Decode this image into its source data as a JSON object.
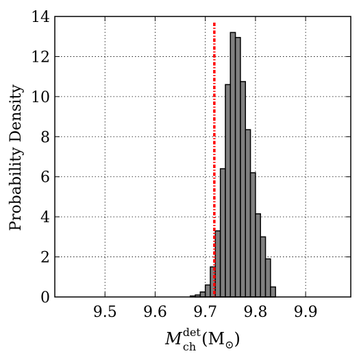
{
  "chart_data": {
    "type": "bar",
    "subtype": "histogram",
    "xlabel_base": "M",
    "xlabel_sub": "ch",
    "xlabel_sup": "det",
    "xlabel_unit": "(M",
    "xlabel_unit_sub": "⊙",
    "xlabel_close": ")",
    "ylabel": "Probability Density",
    "xlim": [
      9.4,
      9.99
    ],
    "ylim": [
      0,
      14
    ],
    "x_ticks": [
      9.5,
      9.6,
      9.7,
      9.8,
      9.9
    ],
    "x_tick_labels": [
      "9.5",
      "9.6",
      "9.7",
      "9.8",
      "9.9"
    ],
    "y_ticks": [
      0,
      2,
      4,
      6,
      8,
      10,
      12,
      14
    ],
    "y_tick_labels": [
      "0",
      "2",
      "4",
      "6",
      "8",
      "10",
      "12",
      "14"
    ],
    "grid": true,
    "bin_width": 0.01,
    "bins": [
      {
        "x0": 9.67,
        "x1": 9.68,
        "value": 0.05
      },
      {
        "x0": 9.68,
        "x1": 9.69,
        "value": 0.1
      },
      {
        "x0": 9.69,
        "x1": 9.7,
        "value": 0.25
      },
      {
        "x0": 9.7,
        "x1": 9.71,
        "value": 0.6
      },
      {
        "x0": 9.71,
        "x1": 9.72,
        "value": 1.5
      },
      {
        "x0": 9.72,
        "x1": 9.73,
        "value": 3.3
      },
      {
        "x0": 9.73,
        "x1": 9.74,
        "value": 6.4
      },
      {
        "x0": 9.74,
        "x1": 9.75,
        "value": 10.6
      },
      {
        "x0": 9.75,
        "x1": 9.76,
        "value": 13.2
      },
      {
        "x0": 9.76,
        "x1": 9.77,
        "value": 12.95
      },
      {
        "x0": 9.77,
        "x1": 9.78,
        "value": 10.75
      },
      {
        "x0": 9.78,
        "x1": 9.79,
        "value": 8.35
      },
      {
        "x0": 9.79,
        "x1": 9.8,
        "value": 6.2
      },
      {
        "x0": 9.8,
        "x1": 9.81,
        "value": 4.15
      },
      {
        "x0": 9.81,
        "x1": 9.82,
        "value": 3.0
      },
      {
        "x0": 9.82,
        "x1": 9.83,
        "value": 1.9
      },
      {
        "x0": 9.83,
        "x1": 9.84,
        "value": 0.5
      }
    ],
    "reference_line": {
      "x": 9.718,
      "style": "dash-dot",
      "color": "#ff0000"
    },
    "bar_fill": "#808080",
    "bar_edge": "#000000"
  }
}
